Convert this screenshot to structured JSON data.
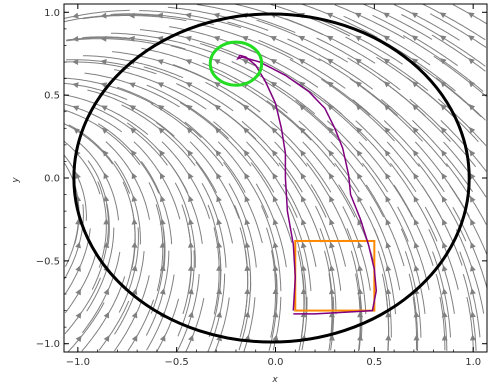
{
  "chart_data": {
    "type": "streamplot",
    "title": "",
    "xlabel": "x",
    "ylabel": "y",
    "xlim": [
      -1.07,
      1.07
    ],
    "ylim": [
      -1.05,
      1.05
    ],
    "x_ticks": [
      "−1.0",
      "−0.5",
      "0.0",
      "0.5",
      "1.0"
    ],
    "x_tick_values": [
      -1.0,
      -0.5,
      0.0,
      0.5,
      1.0
    ],
    "y_ticks": [
      "−1.0",
      "−0.5",
      "0.0",
      "0.5",
      "1.0"
    ],
    "y_tick_values": [
      -1.0,
      -0.5,
      0.0,
      0.5,
      1.0
    ],
    "vector_field_description": "streamlines flowing upward-left, converging toward upper-left region",
    "colors": {
      "streamline": "#808080",
      "domain_boundary": "#000000",
      "target_set": "#22dd22",
      "initial_set": "#ff8800",
      "trajectory": "#800080"
    },
    "domain_circle": {
      "center": [
        -0.02,
        0.0
      ],
      "rx": 1.0,
      "ry": 0.99
    },
    "target_circle": {
      "center": [
        -0.2,
        0.69
      ],
      "r": 0.13
    },
    "initial_rect": {
      "x": [
        0.1,
        0.5
      ],
      "y": [
        -0.8,
        -0.38
      ]
    },
    "trajectory": [
      [
        0.09,
        -0.8
      ],
      [
        0.1,
        -0.6
      ],
      [
        0.09,
        -0.4
      ],
      [
        0.06,
        -0.2
      ],
      [
        0.05,
        0.0
      ],
      [
        0.05,
        0.15
      ],
      [
        0.03,
        0.3
      ],
      [
        0.0,
        0.45
      ],
      [
        -0.05,
        0.58
      ],
      [
        -0.1,
        0.68
      ],
      [
        -0.15,
        0.73
      ],
      [
        -0.18,
        0.74
      ],
      [
        -0.19,
        0.72
      ],
      [
        -0.17,
        0.73
      ],
      [
        -0.08,
        0.7
      ],
      [
        0.05,
        0.62
      ],
      [
        0.17,
        0.52
      ],
      [
        0.25,
        0.42
      ],
      [
        0.3,
        0.3
      ],
      [
        0.34,
        0.18
      ],
      [
        0.37,
        0.02
      ],
      [
        0.38,
        -0.1
      ],
      [
        0.43,
        -0.25
      ],
      [
        0.47,
        -0.4
      ],
      [
        0.5,
        -0.55
      ],
      [
        0.51,
        -0.68
      ],
      [
        0.49,
        -0.8
      ],
      [
        0.35,
        -0.81
      ],
      [
        0.2,
        -0.82
      ],
      [
        0.09,
        -0.82
      ]
    ]
  }
}
